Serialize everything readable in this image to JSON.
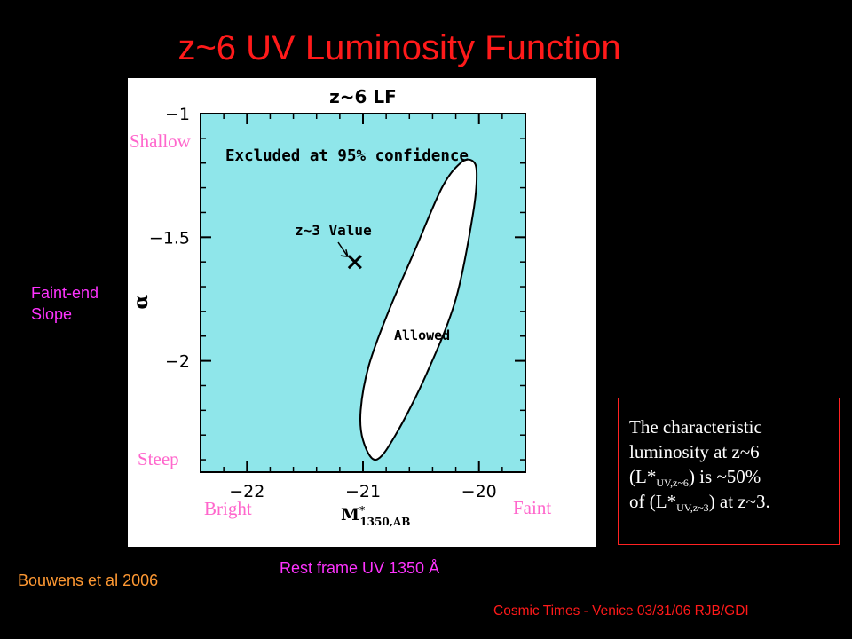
{
  "slide": {
    "title": "z~6 UV Luminosity Function",
    "faint_end_label": [
      "Faint-end",
      "Slope"
    ],
    "shallow_label": "Shallow",
    "steep_label": "Steep",
    "bright_label": "Bright",
    "faint_label": "Faint",
    "x_caption": "Rest frame UV 1350 Å",
    "credit": "Bouwens et al 2006",
    "footer": "Cosmic Times - Venice 03/31/06  RJB/GDI",
    "note": {
      "line1": "The characteristic",
      "line2": "luminosity at z~6",
      "l3_pre": "(L*",
      "l3_sub": "UV,z~6",
      "l3_post": ") is ~50%",
      "l4_pre": "of (L*",
      "l4_sub": "UV,z~3",
      "l4_post": ") at z~3."
    }
  },
  "chart_data": {
    "type": "scatter",
    "title": "z~6 LF",
    "xlabel": "M*1350,AB",
    "ylabel": "α",
    "xlim": [
      -22.4,
      -19.6
    ],
    "ylim": [
      -2.45,
      -1.0
    ],
    "x_ticks": [
      -22,
      -21,
      -20
    ],
    "x_tick_labels": [
      "−22",
      "−21",
      "−20"
    ],
    "y_ticks": [
      -1,
      -1.5,
      -2
    ],
    "y_tick_labels": [
      "−1",
      "−1.5",
      "−2"
    ],
    "excluded_label": "Excluded at 95% confidence",
    "allowed_label": "Allowed",
    "point_label": "z~3 Value",
    "point": {
      "x": -21.07,
      "y": -1.6
    },
    "allowed_region": [
      [
        -20.89,
        -2.4
      ],
      [
        -21.0,
        -2.32
      ],
      [
        -21.02,
        -2.2
      ],
      [
        -20.95,
        -2.02
      ],
      [
        -20.78,
        -1.8
      ],
      [
        -20.55,
        -1.55
      ],
      [
        -20.32,
        -1.3
      ],
      [
        -20.16,
        -1.2
      ],
      [
        -20.06,
        -1.19
      ],
      [
        -20.02,
        -1.24
      ],
      [
        -20.05,
        -1.4
      ],
      [
        -20.2,
        -1.75
      ],
      [
        -20.45,
        -2.05
      ],
      [
        -20.72,
        -2.3
      ]
    ],
    "colors": {
      "excluded": "#8fe6ea",
      "allowed": "#ffffff",
      "axes": "#000000"
    }
  }
}
